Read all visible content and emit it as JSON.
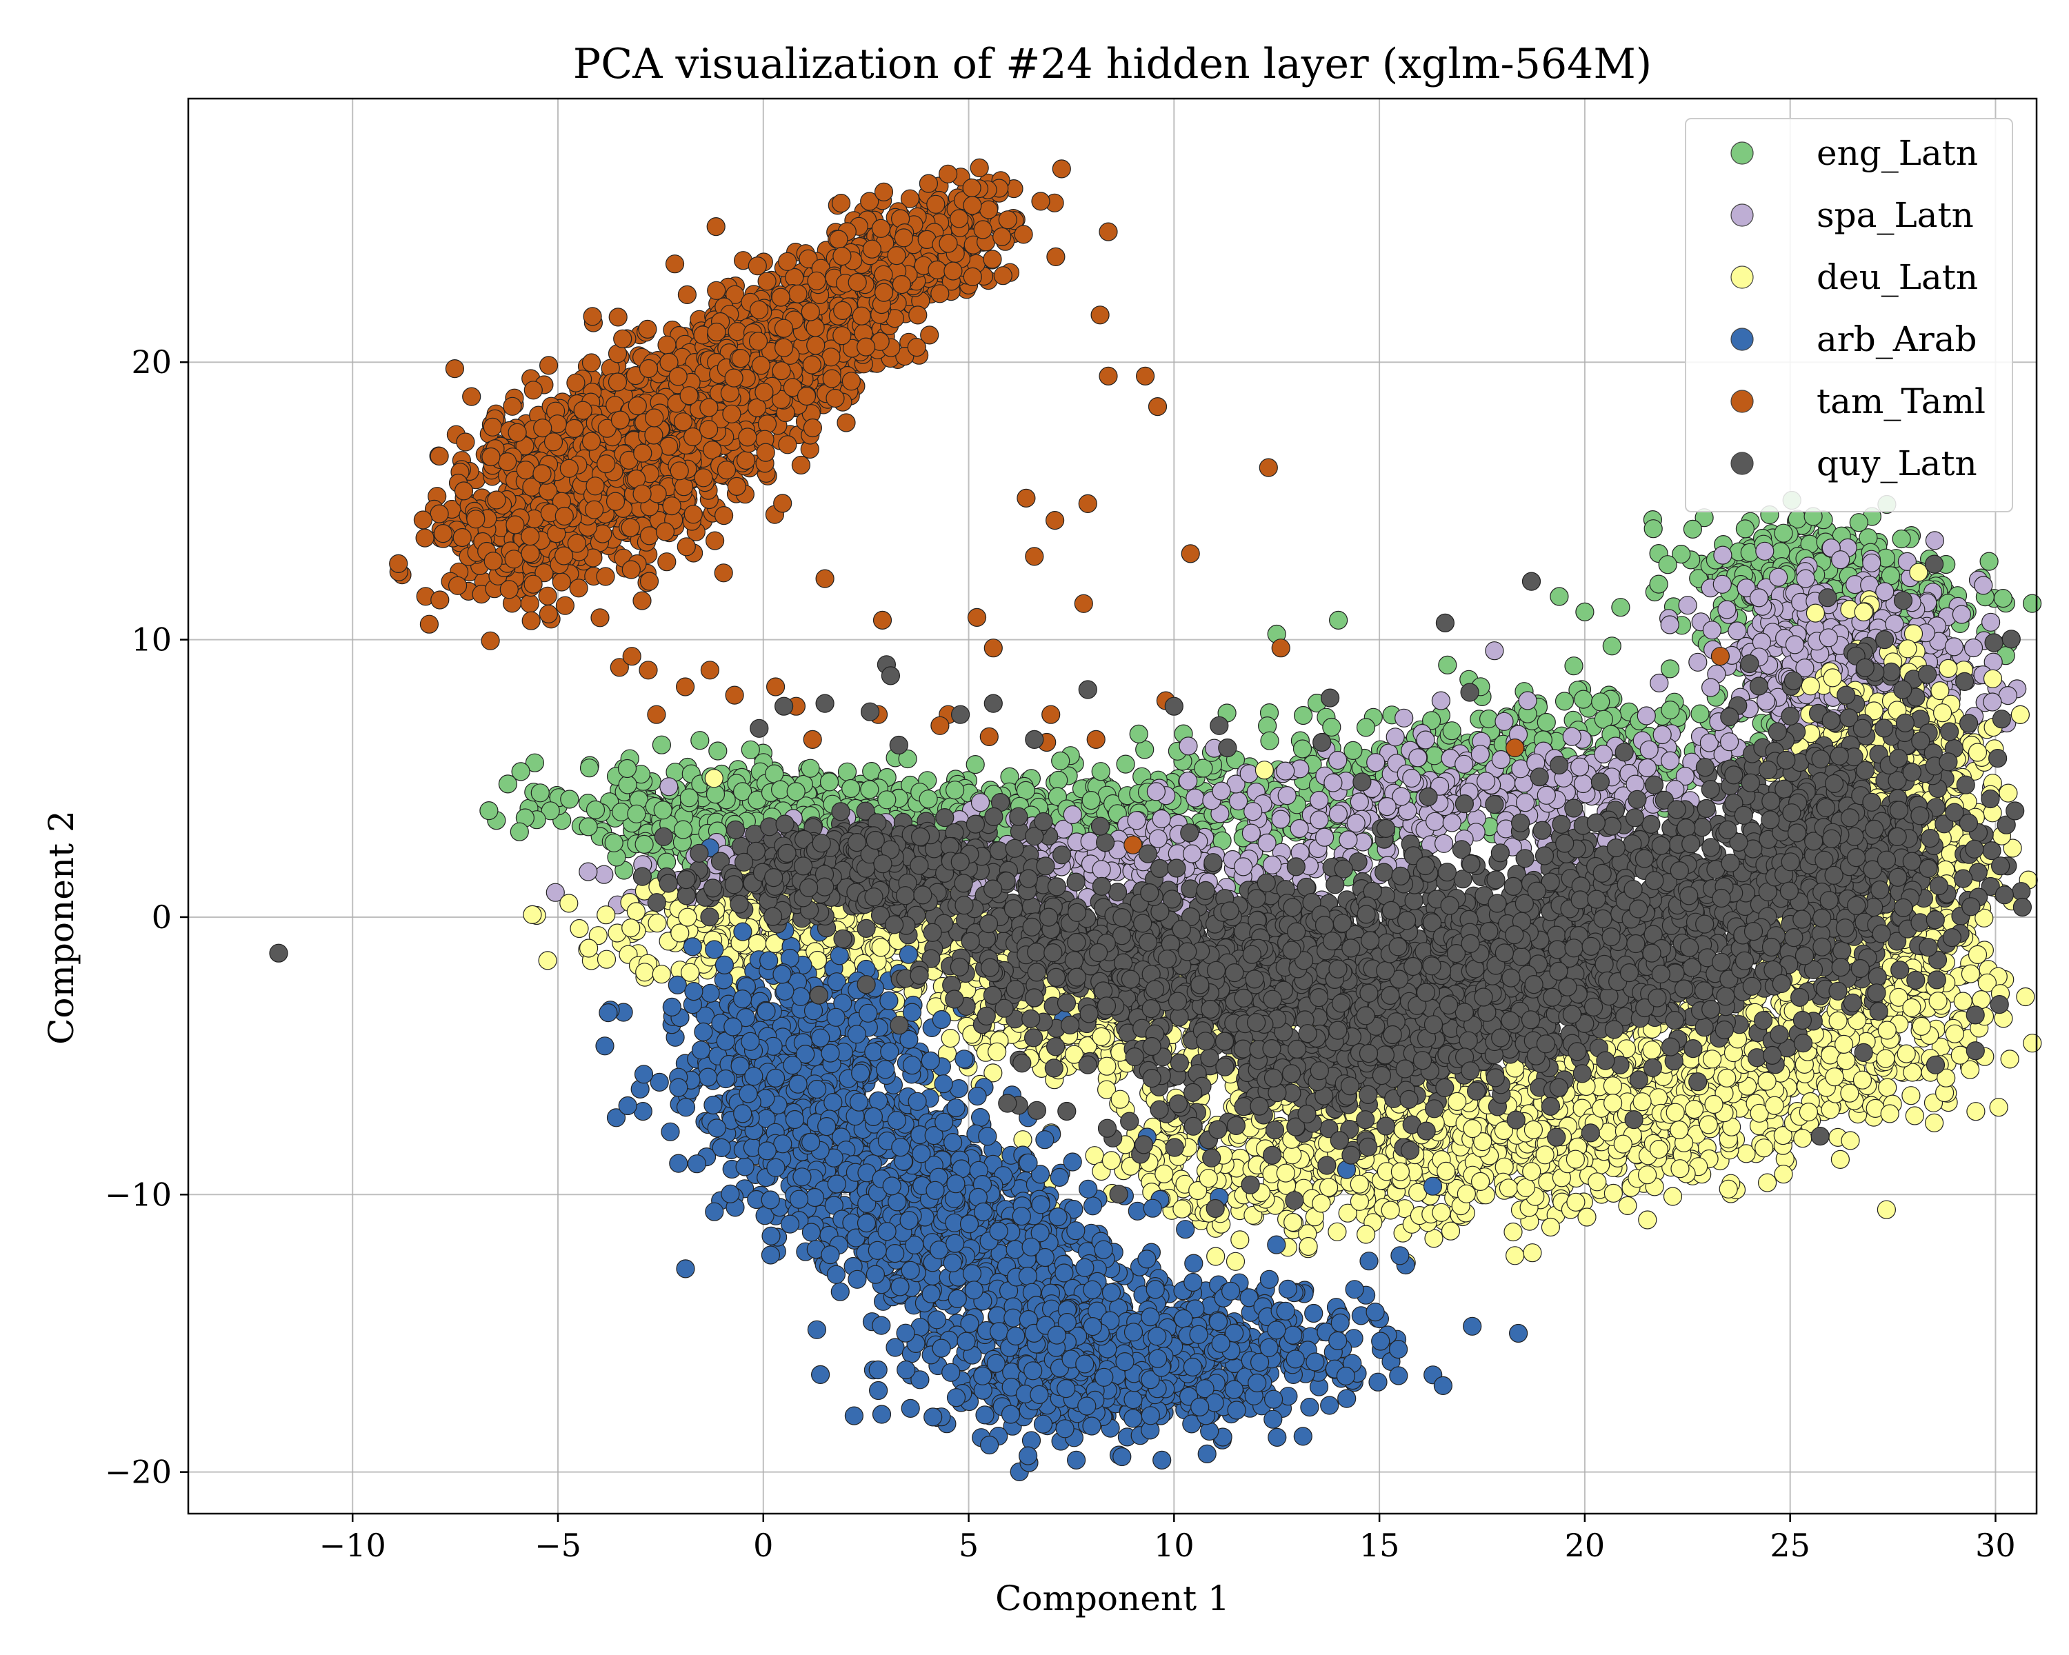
{
  "chart_data": {
    "type": "scatter",
    "title": "PCA visualization of #24 hidden layer (xglm-564M)",
    "xlabel": "Component 1",
    "ylabel": "Component 2",
    "xlim": [
      -14,
      31
    ],
    "ylim": [
      -21.5,
      29.5
    ],
    "xticks": [
      -10,
      -5,
      0,
      5,
      10,
      15,
      20,
      25,
      30
    ],
    "yticks": [
      -20,
      -10,
      0,
      10,
      20
    ],
    "xtick_labels": [
      "−10",
      "−5",
      "0",
      "5",
      "10",
      "15",
      "20",
      "25",
      "30"
    ],
    "ytick_labels": [
      "−20",
      "−10",
      "0",
      "10",
      "20"
    ],
    "grid": true,
    "legend_position": "top-right",
    "series": [
      {
        "name": "eng_Latn",
        "color": "#7fc97f",
        "clusters": [
          {
            "center": [
              0,
              3.6
            ],
            "spread": [
              2.3,
              0.9
            ],
            "corr": -0.1,
            "n": 650
          },
          {
            "center": [
              8,
              3.5
            ],
            "spread": [
              3.5,
              0.9
            ],
            "corr": 0.0,
            "n": 450
          },
          {
            "center": [
              18,
              5.8
            ],
            "spread": [
              4.0,
              1.2
            ],
            "corr": 0.4,
            "n": 350
          },
          {
            "center": [
              26,
              11.6
            ],
            "spread": [
              1.6,
              1.3
            ],
            "corr": -0.2,
            "n": 550
          }
        ],
        "points": [
          [
            12.5,
            10.2
          ],
          [
            14,
            10.7
          ],
          [
            20,
            11
          ],
          [
            24.5,
            14.5
          ],
          [
            21.8,
            12
          ]
        ]
      },
      {
        "name": "spa_Latn",
        "color": "#beaed4",
        "clusters": [
          {
            "center": [
              1,
              1.6
            ],
            "spread": [
              2.0,
              0.7
            ],
            "corr": 0.0,
            "n": 200
          },
          {
            "center": [
              9,
              1.8
            ],
            "spread": [
              3.0,
              0.8
            ],
            "corr": 0.0,
            "n": 250
          },
          {
            "center": [
              18,
              4.6
            ],
            "spread": [
              4.0,
              1.2
            ],
            "corr": 0.3,
            "n": 350
          },
          {
            "center": [
              26.5,
              9.0
            ],
            "spread": [
              1.6,
              1.7
            ],
            "corr": -0.2,
            "n": 500
          }
        ],
        "points": [
          [
            17.8,
            9.6
          ],
          [
            16.5,
            7.8
          ],
          [
            -2.3,
            4.7
          ]
        ]
      },
      {
        "name": "deu_Latn",
        "color": "#fdfd99",
        "clusters": [
          {
            "center": [
              1.5,
              -0.6
            ],
            "spread": [
              2.5,
              0.8
            ],
            "corr": 0.0,
            "n": 500
          },
          {
            "center": [
              8.5,
              -3.6
            ],
            "spread": [
              2.8,
              1.2
            ],
            "corr": -0.3,
            "n": 450
          },
          {
            "center": [
              16,
              -8.2
            ],
            "spread": [
              3.6,
              1.5
            ],
            "corr": 0.3,
            "n": 900
          },
          {
            "center": [
              22.5,
              -6.0
            ],
            "spread": [
              3.0,
              1.8
            ],
            "corr": 0.5,
            "n": 800
          },
          {
            "center": [
              27.2,
              1.5
            ],
            "spread": [
              1.3,
              3.3
            ],
            "corr": 0.1,
            "n": 1200
          }
        ],
        "points": [
          [
            18.3,
            -12.2
          ],
          [
            -1.2,
            5
          ],
          [
            12.2,
            5.3
          ],
          [
            27.5,
            9.2
          ],
          [
            29,
            4
          ]
        ]
      },
      {
        "name": "arb_Arab",
        "color": "#386cb0",
        "clusters": [
          {
            "center": [
              1,
              -6
            ],
            "spread": [
              1.6,
              2.2
            ],
            "corr": -0.1,
            "n": 650
          },
          {
            "center": [
              4.5,
              -11
            ],
            "spread": [
              2.3,
              2.3
            ],
            "corr": -0.55,
            "n": 900
          },
          {
            "center": [
              9,
              -16
            ],
            "spread": [
              2.5,
              1.3
            ],
            "corr": 0.15,
            "n": 900
          }
        ],
        "points": [
          [
            -3.3,
            -6.8
          ],
          [
            -1.3,
            2.5
          ],
          [
            7.3,
            -3.7
          ],
          [
            14.2,
            -9.1
          ],
          [
            16.3,
            -9.7
          ],
          [
            15.5,
            -12.2
          ],
          [
            10.8,
            -8.1
          ],
          [
            11.1,
            -10.1
          ]
        ]
      },
      {
        "name": "tam_Taml",
        "color": "#bf5b17",
        "clusters": [
          {
            "center": [
              -4,
              16
            ],
            "spread": [
              1.7,
              1.9
            ],
            "corr": 0.5,
            "n": 1400
          },
          {
            "center": [
              0,
              20
            ],
            "spread": [
              1.7,
              1.8
            ],
            "corr": 0.6,
            "n": 900
          },
          {
            "center": [
              3.5,
              24
            ],
            "spread": [
              1.2,
              1.1
            ],
            "corr": 0.5,
            "n": 400
          }
        ],
        "points": [
          [
            8.4,
            24.7
          ],
          [
            8.2,
            21.7
          ],
          [
            8.4,
            19.5
          ],
          [
            9.3,
            19.5
          ],
          [
            9.6,
            18.4
          ],
          [
            12.3,
            16.2
          ],
          [
            10.4,
            13.1
          ],
          [
            12.6,
            9.7
          ],
          [
            7.9,
            14.9
          ],
          [
            6.4,
            15.1
          ],
          [
            6.6,
            13
          ],
          [
            7.1,
            14.3
          ],
          [
            7.8,
            11.3
          ],
          [
            5.2,
            10.8
          ],
          [
            5.6,
            9.7
          ],
          [
            2.9,
            10.7
          ],
          [
            1.5,
            12.2
          ],
          [
            -3.5,
            9
          ],
          [
            -2.8,
            8.9
          ],
          [
            -3.2,
            9.4
          ],
          [
            -1.9,
            8.3
          ],
          [
            -0.7,
            8
          ],
          [
            0.3,
            8.3
          ],
          [
            0.8,
            7.6
          ],
          [
            2.8,
            7.3
          ],
          [
            4.5,
            7.3
          ],
          [
            5.5,
            6.5
          ],
          [
            7.0,
            7.3
          ],
          [
            6.9,
            6.3
          ],
          [
            8.1,
            6.4
          ],
          [
            9.8,
            7.8
          ],
          [
            9.0,
            2.6
          ],
          [
            23.3,
            9.4
          ],
          [
            18.3,
            6.1
          ],
          [
            -1.3,
            8.9
          ],
          [
            1.2,
            6.4
          ],
          [
            4.3,
            6.9
          ],
          [
            -2.6,
            7.3
          ]
        ]
      },
      {
        "name": "quy_Latn",
        "color": "#595959",
        "clusters": [
          {
            "center": [
              2.5,
              1.7
            ],
            "spread": [
              1.8,
              0.8
            ],
            "corr": 0.1,
            "n": 550
          },
          {
            "center": [
              9,
              -1.4
            ],
            "spread": [
              2.6,
              1.2
            ],
            "corr": -0.1,
            "n": 700
          },
          {
            "center": [
              15.5,
              -2.7
            ],
            "spread": [
              3.2,
              2.3
            ],
            "corr": 0.35,
            "n": 1500
          },
          {
            "center": [
              21,
              -0.6
            ],
            "spread": [
              3.0,
              2.5
            ],
            "corr": 0.45,
            "n": 900
          },
          {
            "center": [
              26.5,
              2.5
            ],
            "spread": [
              1.6,
              3.0
            ],
            "corr": 0.2,
            "n": 500
          }
        ],
        "points": [
          [
            -11.8,
            -1.3
          ],
          [
            18.7,
            12.1
          ],
          [
            16.6,
            10.6
          ],
          [
            13.8,
            7.9
          ],
          [
            10,
            7.6
          ],
          [
            11.1,
            6.9
          ],
          [
            17.2,
            8.1
          ],
          [
            3.0,
            9.1
          ],
          [
            3.1,
            8.7
          ],
          [
            5.6,
            7.7
          ],
          [
            7.9,
            8.2
          ],
          [
            0.5,
            7.6
          ],
          [
            -0.1,
            6.8
          ],
          [
            1.5,
            7.7
          ],
          [
            2.6,
            7.4
          ],
          [
            4.8,
            7.3
          ],
          [
            6.6,
            6.4
          ],
          [
            3.3,
            6.2
          ],
          [
            11.3,
            6.1
          ],
          [
            13.6,
            6.3
          ],
          [
            27.3,
            10
          ]
        ]
      }
    ]
  }
}
